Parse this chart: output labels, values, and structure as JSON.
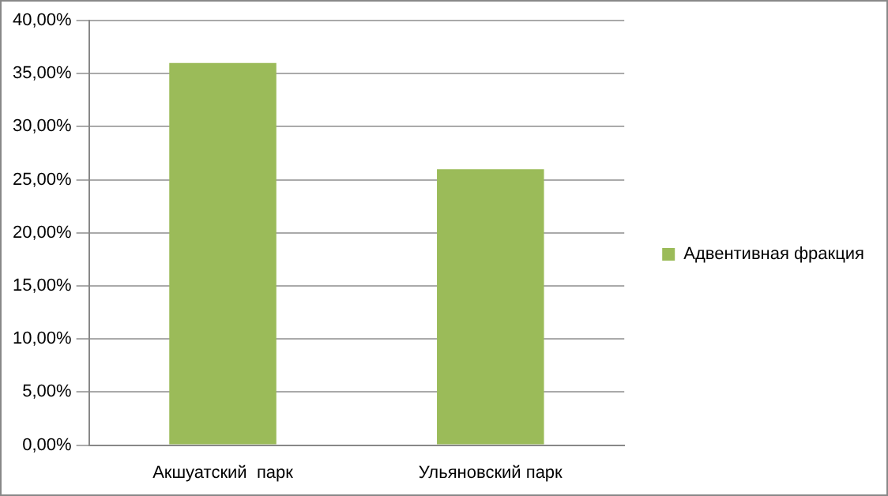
{
  "chart_data": {
    "type": "bar",
    "categories": [
      "Акшуатский  парк",
      "Ульяновский парк"
    ],
    "series": [
      {
        "name": "Адвентивная фракция",
        "color": "#9bbb59",
        "values": [
          36,
          26
        ]
      }
    ],
    "ylim": [
      0,
      40
    ],
    "yticks": [
      {
        "value": 0,
        "label": "0,00%"
      },
      {
        "value": 5,
        "label": "5,00%"
      },
      {
        "value": 10,
        "label": "10,00%"
      },
      {
        "value": 15,
        "label": "15,00%"
      },
      {
        "value": 20,
        "label": "20,00%"
      },
      {
        "value": 25,
        "label": "25,00%"
      },
      {
        "value": 30,
        "label": "30,00%"
      },
      {
        "value": 35,
        "label": "35,00%"
      },
      {
        "value": 40,
        "label": "40,00%"
      }
    ],
    "grid": "y",
    "legend": "right"
  }
}
